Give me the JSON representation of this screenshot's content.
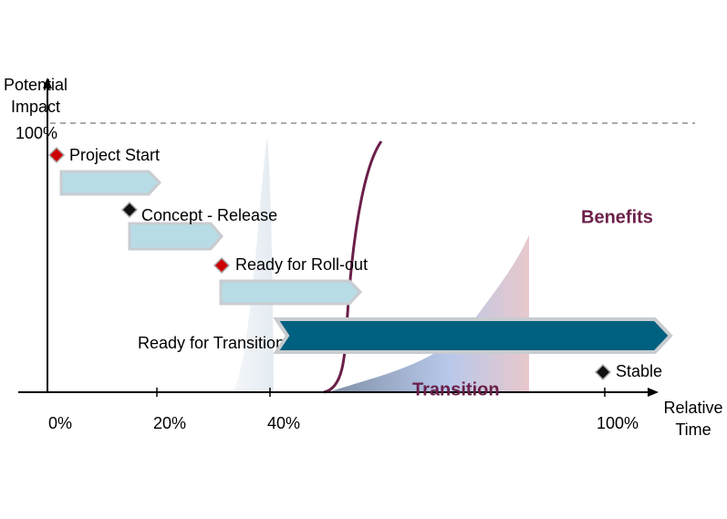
{
  "axes": {
    "y_label_line1": "Potential",
    "y_label_line2": "Impact",
    "y_top": "100%",
    "x_label_line1": "Relative",
    "x_label_line2": "Time",
    "x_ticks": [
      "0%",
      "20%",
      "40%",
      "100%"
    ]
  },
  "milestones": [
    {
      "label": "Project Start"
    },
    {
      "label": "Concept - Release"
    },
    {
      "label": "Ready for Roll-out"
    },
    {
      "label": "Ready for Transition"
    },
    {
      "label": "Stable"
    }
  ],
  "phases": {
    "benefits": "Benefits",
    "transition": "Transition"
  }
}
